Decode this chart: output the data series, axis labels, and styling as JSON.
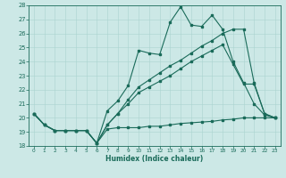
{
  "xlabel": "Humidex (Indice chaleur)",
  "bg_color": "#cce8e6",
  "grid_color": "#aad4d0",
  "line_color": "#1a6b5a",
  "ylim": [
    18,
    28
  ],
  "xlim": [
    -0.5,
    23.5
  ],
  "yticks": [
    18,
    19,
    20,
    21,
    22,
    23,
    24,
    25,
    26,
    27,
    28
  ],
  "xticks": [
    0,
    1,
    2,
    3,
    4,
    5,
    6,
    7,
    8,
    9,
    10,
    11,
    12,
    13,
    14,
    15,
    16,
    17,
    18,
    19,
    20,
    21,
    22,
    23
  ],
  "s1_x": [
    0,
    1,
    2,
    3,
    4,
    5,
    6,
    7,
    8,
    9,
    10,
    11,
    12,
    13,
    14,
    15,
    16,
    17,
    18,
    19,
    20,
    21,
    22,
    23
  ],
  "s1_y": [
    20.3,
    19.5,
    19.1,
    19.1,
    19.1,
    19.1,
    18.2,
    19.2,
    19.3,
    19.3,
    19.3,
    19.4,
    19.4,
    19.5,
    19.6,
    19.65,
    19.7,
    19.75,
    19.85,
    19.9,
    20.0,
    20.0,
    20.0,
    20.0
  ],
  "s2_x": [
    0,
    1,
    2,
    3,
    4,
    5,
    6,
    7,
    8,
    9,
    10,
    11,
    12,
    13,
    14,
    15,
    16,
    17,
    18,
    19,
    20,
    21,
    22,
    23
  ],
  "s2_y": [
    20.3,
    19.5,
    19.1,
    19.1,
    19.1,
    19.1,
    18.2,
    20.5,
    21.2,
    22.3,
    24.8,
    24.6,
    24.5,
    26.8,
    27.9,
    26.6,
    26.5,
    27.3,
    26.3,
    24.0,
    22.5,
    21.0,
    20.2,
    20.0
  ],
  "s3_x": [
    0,
    1,
    2,
    3,
    4,
    5,
    6,
    7,
    8,
    9,
    10,
    11,
    12,
    13,
    14,
    15,
    16,
    17,
    18,
    19,
    20,
    21,
    22,
    23
  ],
  "s3_y": [
    20.3,
    19.5,
    19.1,
    19.1,
    19.1,
    19.1,
    18.2,
    19.5,
    20.3,
    21.3,
    22.2,
    22.7,
    23.2,
    23.7,
    24.1,
    24.6,
    25.1,
    25.5,
    26.0,
    26.3,
    26.3,
    22.5,
    20.3,
    20.0
  ],
  "s4_x": [
    0,
    1,
    2,
    3,
    4,
    5,
    6,
    7,
    8,
    9,
    10,
    11,
    12,
    13,
    14,
    15,
    16,
    17,
    18,
    19,
    20,
    21,
    22,
    23
  ],
  "s4_y": [
    20.3,
    19.5,
    19.1,
    19.1,
    19.1,
    19.1,
    18.2,
    19.5,
    20.3,
    21.0,
    21.8,
    22.2,
    22.6,
    23.0,
    23.5,
    24.0,
    24.4,
    24.8,
    25.2,
    23.8,
    22.4,
    22.4,
    20.3,
    20.0
  ]
}
